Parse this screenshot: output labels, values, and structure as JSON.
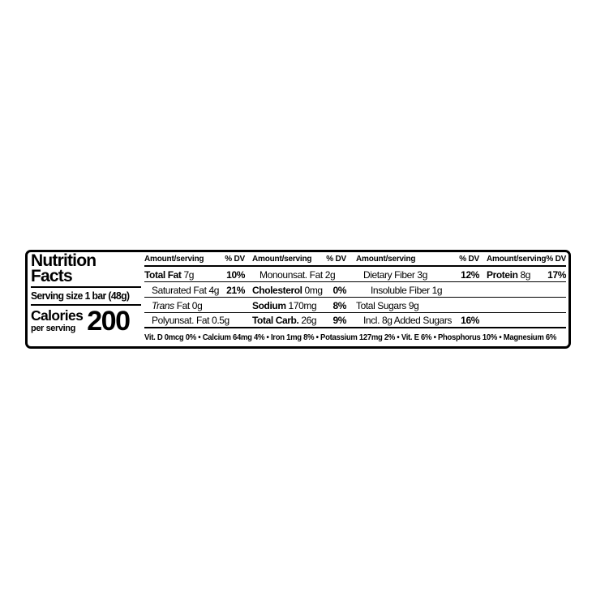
{
  "label": {
    "title_line1": "Nutrition",
    "title_line2": "Facts",
    "serving_size": "Serving size 1 bar (48g)",
    "calories_label": "Calories",
    "calories_sublabel": "per serving",
    "calories_value": "200",
    "colors": {
      "ink": "#000000",
      "background": "#ffffff"
    },
    "table": {
      "columns": [
        {
          "header": {
            "amount": "Amount/serving",
            "dv": "% DV"
          },
          "rows": [
            {
              "bold": "Total Fat",
              "italic": "",
              "rest": " 7g",
              "dv": "10%"
            },
            {
              "bold": "",
              "italic": "",
              "rest": "Saturated Fat 4g",
              "dv": "21%"
            },
            {
              "bold": "",
              "italic": "Trans",
              "rest": " Fat 0g",
              "dv": ""
            },
            {
              "bold": "",
              "italic": "",
              "rest": "Polyunsat. Fat 0.5g",
              "dv": ""
            }
          ]
        },
        {
          "header": {
            "amount": "Amount/serving",
            "dv": "% DV"
          },
          "rows": [
            {
              "bold": "",
              "italic": "",
              "rest": "Monounsat. Fat 2g",
              "dv": ""
            },
            {
              "bold": "Cholesterol",
              "italic": "",
              "rest": " 0mg",
              "dv": "0%"
            },
            {
              "bold": "Sodium",
              "italic": "",
              "rest": " 170mg",
              "dv": "8%"
            },
            {
              "bold": "Total Carb.",
              "italic": "",
              "rest": " 26g",
              "dv": "9%"
            }
          ]
        },
        {
          "header": {
            "amount": "Amount/serving",
            "dv": "% DV"
          },
          "rows": [
            {
              "bold": "",
              "italic": "",
              "rest": "Dietary Fiber 3g",
              "dv": "12%"
            },
            {
              "bold": "",
              "italic": "",
              "rest": "Insoluble Fiber 1g",
              "dv": ""
            },
            {
              "bold": "",
              "italic": "",
              "rest": "Total Sugars 9g",
              "dv": ""
            },
            {
              "bold": "",
              "italic": "",
              "rest": "Incl. 8g Added Sugars",
              "dv": "16%"
            }
          ]
        },
        {
          "header": {
            "amount": "Amount/serving",
            "dv": "% DV"
          },
          "rows": [
            {
              "bold": "Protein",
              "italic": "",
              "rest": " 8g",
              "dv": "17%"
            },
            {
              "bold": "",
              "italic": "",
              "rest": "",
              "dv": ""
            },
            {
              "bold": "",
              "italic": "",
              "rest": "",
              "dv": ""
            },
            {
              "bold": "",
              "italic": "",
              "rest": "",
              "dv": ""
            }
          ]
        }
      ],
      "micronutrients": "Vit. D 0mcg 0% • Calcium 64mg 4% • Iron 1mg 8% • Potassium 127mg 2% • Vit. E 6% • Phosphorus 10% • Magnesium 6%"
    }
  }
}
